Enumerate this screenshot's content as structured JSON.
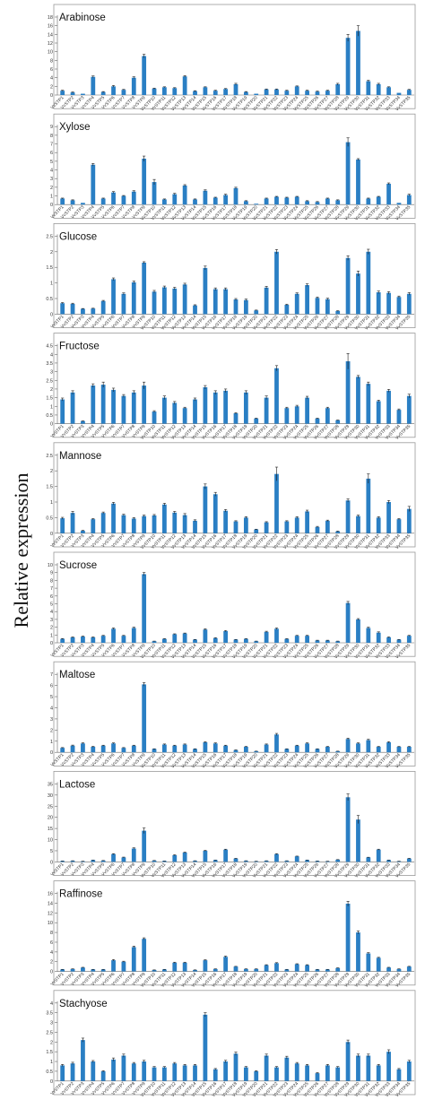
{
  "figure": {
    "ylabel": "Relative        expression"
  },
  "chart_data": [
    {
      "type": "bar",
      "title": "Arabinose",
      "ylim": [
        0,
        18
      ],
      "yticks": [
        0,
        2,
        4,
        6,
        8,
        10,
        12,
        14,
        16,
        18
      ],
      "categories": [
        "VvSTP1",
        "VvSTP2",
        "VvSTP3",
        "VvSTP4",
        "VvSTP5",
        "VvSTP6",
        "VvSTP7",
        "VvSTP8",
        "VvSTP9",
        "VvSTP10",
        "VvSTP11",
        "VvSTP12",
        "VvSTP13",
        "VvSTP14",
        "VvSTP15",
        "VvSTP16",
        "VvSTP17",
        "VvSTP18",
        "VvSTP19",
        "VvSTP20",
        "VvSTP21",
        "VvSTP22",
        "VvSTP23",
        "VvSTP24",
        "VvSTP25",
        "VvSTP26",
        "VvSTP27",
        "VvSTP28",
        "VvSTP29",
        "VvSTP30",
        "VvSTP31",
        "VvSTP32",
        "VvSTP33",
        "VvSTP34",
        "VvSTP35"
      ],
      "values": [
        1.0,
        0.6,
        0.3,
        4.2,
        0.7,
        2.0,
        1.2,
        4.0,
        9.0,
        1.5,
        1.8,
        1.6,
        4.3,
        0.9,
        1.8,
        1.0,
        1.4,
        2.5,
        0.7,
        0.3,
        1.3,
        1.3,
        1.0,
        2.0,
        1.0,
        0.8,
        1.0,
        2.5,
        13.2,
        14.8,
        3.2,
        2.5,
        1.8,
        0.5,
        1.2
      ],
      "errors": [
        0.1,
        0.1,
        0,
        0.2,
        0.1,
        0.2,
        0.1,
        0.2,
        0.4,
        0.1,
        0.1,
        0.1,
        0.2,
        0.1,
        0.1,
        0.1,
        0.1,
        0.2,
        0.1,
        0,
        0.1,
        0.1,
        0.1,
        0.1,
        0.1,
        0.1,
        0.1,
        0.2,
        0.8,
        1.2,
        0.2,
        0.2,
        0.1,
        0,
        0.1
      ]
    },
    {
      "type": "bar",
      "title": "Xylose",
      "ylim": [
        0,
        9
      ],
      "yticks": [
        0,
        1,
        2,
        3,
        4,
        5,
        6,
        7,
        8,
        9
      ],
      "categories": [
        "VvSTP1",
        "VvSTP2",
        "VvSTP3",
        "VvSTP4",
        "VvSTP5",
        "VvSTP6",
        "VvSTP7",
        "VvSTP8",
        "VvSTP9",
        "VvSTP10",
        "VvSTP11",
        "VvSTP12",
        "VvSTP13",
        "VvSTP14",
        "VvSTP15",
        "VvSTP16",
        "VvSTP17",
        "VvSTP18",
        "VvSTP19",
        "VvSTP20",
        "VvSTP21",
        "VvSTP22",
        "VvSTP23",
        "VvSTP24",
        "VvSTP25",
        "VvSTP26",
        "VvSTP27",
        "VvSTP28",
        "VvSTP29",
        "VvSTP30",
        "VvSTP31",
        "VvSTP32",
        "VvSTP33",
        "VvSTP34",
        "VvSTP35"
      ],
      "values": [
        0.7,
        0.5,
        0.2,
        4.6,
        0.7,
        1.4,
        1.0,
        1.5,
        5.3,
        2.6,
        0.6,
        1.2,
        2.2,
        0.6,
        1.6,
        0.8,
        1.1,
        1.9,
        0.4,
        0.1,
        0.7,
        0.9,
        0.8,
        0.9,
        0.4,
        0.3,
        0.7,
        0.5,
        7.2,
        5.2,
        0.7,
        0.9,
        2.4,
        0.2,
        1.1
      ],
      "errors": [
        0.05,
        0.05,
        0,
        0.15,
        0.05,
        0.1,
        0.05,
        0.1,
        0.3,
        0.3,
        0.05,
        0.1,
        0.1,
        0.05,
        0.1,
        0.05,
        0.1,
        0.1,
        0.05,
        0,
        0.05,
        0.05,
        0.05,
        0.05,
        0.05,
        0.05,
        0.05,
        0.05,
        0.5,
        0.1,
        0.05,
        0.05,
        0.1,
        0,
        0.1
      ]
    },
    {
      "type": "bar",
      "title": "Glucose",
      "ylim": [
        0,
        2.5
      ],
      "yticks": [
        0,
        0.5,
        1,
        1.5,
        2,
        2.5
      ],
      "categories": [
        "VvSTP1",
        "VvSTP2",
        "VvSTP3",
        "VvSTP4",
        "VvSTP5",
        "VvSTP6",
        "VvSTP7",
        "VvSTP8",
        "VvSTP9",
        "VvSTP10",
        "VvSTP11",
        "VvSTP12",
        "VvSTP13",
        "VvSTP14",
        "VvSTP15",
        "VvSTP16",
        "VvSTP17",
        "VvSTP18",
        "VvSTP19",
        "VvSTP20",
        "VvSTP21",
        "VvSTP22",
        "VvSTP23",
        "VvSTP24",
        "VvSTP25",
        "VvSTP26",
        "VvSTP27",
        "VvSTP28",
        "VvSTP29",
        "VvSTP30",
        "VvSTP31",
        "VvSTP32",
        "VvSTP33",
        "VvSTP34",
        "VvSTP35"
      ],
      "values": [
        0.35,
        0.33,
        0.17,
        0.18,
        0.42,
        1.12,
        0.65,
        1.02,
        1.65,
        0.72,
        0.86,
        0.82,
        0.95,
        0.28,
        1.48,
        0.8,
        0.8,
        0.47,
        0.45,
        0.12,
        0.85,
        2.0,
        0.3,
        0.65,
        0.93,
        0.52,
        0.48,
        0.1,
        1.8,
        1.3,
        2.0,
        0.7,
        0.68,
        0.55,
        0.65
      ],
      "errors": [
        0.02,
        0.02,
        0.01,
        0.01,
        0.02,
        0.04,
        0.03,
        0.04,
        0.03,
        0.04,
        0.04,
        0.04,
        0.04,
        0.02,
        0.06,
        0.04,
        0.04,
        0.03,
        0.03,
        0.01,
        0.04,
        0.07,
        0.02,
        0.03,
        0.04,
        0.03,
        0.03,
        0.01,
        0.07,
        0.08,
        0.08,
        0.04,
        0.04,
        0.03,
        0.04
      ]
    },
    {
      "type": "bar",
      "title": "Fructose",
      "ylim": [
        0,
        4.5
      ],
      "yticks": [
        0,
        0.5,
        1,
        1.5,
        2,
        2.5,
        3,
        3.5,
        4,
        4.5
      ],
      "categories": [
        "VvSTP1",
        "VvSTP2",
        "VvSTP3",
        "VvSTP4",
        "VvSTP5",
        "VvSTP6",
        "VvSTP7",
        "VvSTP8",
        "VvSTP9",
        "VvSTP10",
        "VvSTP11",
        "VvSTP12",
        "VvSTP13",
        "VvSTP14",
        "VvSTP15",
        "VvSTP16",
        "VvSTP17",
        "VvSTP18",
        "VvSTP19",
        "VvSTP20",
        "VvSTP21",
        "VvSTP22",
        "VvSTP23",
        "VvSTP24",
        "VvSTP25",
        "VvSTP26",
        "VvSTP27",
        "VvSTP28",
        "VvSTP29",
        "VvSTP30",
        "VvSTP31",
        "VvSTP32",
        "VvSTP33",
        "VvSTP34",
        "VvSTP35"
      ],
      "values": [
        1.4,
        1.8,
        0.15,
        2.2,
        2.25,
        1.95,
        1.6,
        1.8,
        2.2,
        0.7,
        1.5,
        1.2,
        0.9,
        1.4,
        2.1,
        1.8,
        1.9,
        0.6,
        1.8,
        0.3,
        1.5,
        3.2,
        0.9,
        1.0,
        1.5,
        0.3,
        0.9,
        0.2,
        3.6,
        2.7,
        2.3,
        1.3,
        1.9,
        0.8,
        1.6
      ],
      "errors": [
        0.08,
        0.1,
        0.01,
        0.1,
        0.15,
        0.1,
        0.08,
        0.1,
        0.2,
        0.05,
        0.1,
        0.08,
        0.05,
        0.08,
        0.1,
        0.1,
        0.1,
        0.04,
        0.1,
        0.02,
        0.1,
        0.15,
        0.05,
        0.06,
        0.08,
        0.02,
        0.05,
        0.01,
        0.45,
        0.08,
        0.1,
        0.06,
        0.08,
        0.05,
        0.1
      ]
    },
    {
      "type": "bar",
      "title": "Mannose",
      "ylim": [
        0,
        2.5
      ],
      "yticks": [
        0,
        0.5,
        1,
        1.5,
        2,
        2.5
      ],
      "categories": [
        "VvSTP1",
        "VvSTP2",
        "VvSTP3",
        "VvSTP4",
        "VvSTP5",
        "VvSTP6",
        "VvSTP7",
        "VvSTP8",
        "VvSTP9",
        "VvSTP10",
        "VvSTP11",
        "VvSTP12",
        "VvSTP13",
        "VvSTP14",
        "VvSTP15",
        "VvSTP16",
        "VvSTP17",
        "VvSTP18",
        "VvSTP19",
        "VvSTP20",
        "VvSTP21",
        "VvSTP22",
        "VvSTP23",
        "VvSTP24",
        "VvSTP25",
        "VvSTP26",
        "VvSTP27",
        "VvSTP28",
        "VvSTP29",
        "VvSTP30",
        "VvSTP31",
        "VvSTP32",
        "VvSTP33",
        "VvSTP34",
        "VvSTP35"
      ],
      "values": [
        0.48,
        0.65,
        0.08,
        0.45,
        0.65,
        0.95,
        0.58,
        0.47,
        0.55,
        0.57,
        0.92,
        0.66,
        0.58,
        0.4,
        1.5,
        1.25,
        0.72,
        0.38,
        0.5,
        0.12,
        0.35,
        1.9,
        0.38,
        0.5,
        0.7,
        0.2,
        0.4,
        0.06,
        1.05,
        0.55,
        1.75,
        0.5,
        1.0,
        0.45,
        0.78
      ],
      "errors": [
        0.03,
        0.05,
        0.01,
        0.02,
        0.03,
        0.04,
        0.03,
        0.03,
        0.03,
        0.03,
        0.04,
        0.04,
        0.05,
        0.03,
        0.08,
        0.06,
        0.04,
        0.02,
        0.03,
        0.01,
        0.02,
        0.22,
        0.02,
        0.03,
        0.04,
        0.02,
        0.02,
        0.01,
        0.05,
        0.03,
        0.15,
        0.03,
        0.05,
        0.02,
        0.08
      ]
    },
    {
      "type": "bar",
      "title": "Sucrose",
      "ylim": [
        0,
        10
      ],
      "yticks": [
        0,
        1,
        2,
        3,
        4,
        5,
        6,
        7,
        8,
        9,
        10
      ],
      "categories": [
        "VvSTP1",
        "VvSTP2",
        "VvSTP3",
        "VvSTP4",
        "VvSTP5",
        "VvSTP6",
        "VvSTP7",
        "VvSTP8",
        "VvSTP9",
        "VvSTP10",
        "VvSTP11",
        "VvSTP12",
        "VvSTP13",
        "VvSTP14",
        "VvSTP15",
        "VvSTP16",
        "VvSTP17",
        "VvSTP18",
        "VvSTP19",
        "VvSTP20",
        "VvSTP21",
        "VvSTP22",
        "VvSTP23",
        "VvSTP24",
        "VvSTP25",
        "VvSTP26",
        "VvSTP27",
        "VvSTP28",
        "VvSTP29",
        "VvSTP30",
        "VvSTP31",
        "VvSTP32",
        "VvSTP33",
        "VvSTP34",
        "VvSTP35"
      ],
      "values": [
        0.5,
        0.7,
        0.8,
        0.7,
        0.9,
        1.8,
        0.9,
        1.9,
        8.8,
        0.2,
        0.5,
        1.1,
        1.2,
        0.4,
        1.7,
        0.6,
        1.5,
        0.4,
        0.5,
        0.2,
        1.4,
        1.8,
        0.5,
        0.9,
        0.9,
        0.3,
        0.3,
        0.2,
        5.1,
        3.0,
        1.9,
        1.3,
        0.7,
        0.4,
        0.9
      ],
      "errors": [
        0.05,
        0.05,
        0.05,
        0.05,
        0.05,
        0.1,
        0.05,
        0.1,
        0.2,
        0.02,
        0.03,
        0.05,
        0.05,
        0.03,
        0.1,
        0.05,
        0.08,
        0.03,
        0.03,
        0.02,
        0.08,
        0.1,
        0.03,
        0.05,
        0.05,
        0.03,
        0.03,
        0.02,
        0.2,
        0.1,
        0.1,
        0.1,
        0.05,
        0.03,
        0.05
      ]
    },
    {
      "type": "bar",
      "title": "Maltose",
      "ylim": [
        0,
        7
      ],
      "yticks": [
        0,
        1,
        2,
        3,
        4,
        5,
        6,
        7
      ],
      "categories": [
        "VvSTP1",
        "VvSTP2",
        "VvSTP3",
        "VvSTP4",
        "VvSTP5",
        "VvSTP6",
        "VvSTP7",
        "VvSTP8",
        "VvSTP9",
        "VvSTP10",
        "VvSTP11",
        "VvSTP12",
        "VvSTP13",
        "VvSTP14",
        "VvSTP15",
        "VvSTP16",
        "VvSTP17",
        "VvSTP18",
        "VvSTP19",
        "VvSTP20",
        "VvSTP21",
        "VvSTP22",
        "VvSTP23",
        "VvSTP24",
        "VvSTP25",
        "VvSTP26",
        "VvSTP27",
        "VvSTP28",
        "VvSTP29",
        "VvSTP30",
        "VvSTP31",
        "VvSTP32",
        "VvSTP33",
        "VvSTP34",
        "VvSTP35"
      ],
      "values": [
        0.4,
        0.6,
        0.8,
        0.5,
        0.6,
        0.8,
        0.4,
        0.6,
        6.1,
        0.3,
        0.7,
        0.6,
        0.7,
        0.3,
        0.9,
        0.8,
        0.6,
        0.2,
        0.5,
        0.1,
        0.7,
        1.6,
        0.3,
        0.6,
        0.8,
        0.3,
        0.5,
        0.1,
        1.2,
        0.8,
        1.1,
        0.5,
        0.9,
        0.5,
        0.5
      ],
      "errors": [
        0.03,
        0.05,
        0.05,
        0.04,
        0.04,
        0.05,
        0.03,
        0.04,
        0.15,
        0.02,
        0.05,
        0.04,
        0.05,
        0.02,
        0.06,
        0.05,
        0.04,
        0.02,
        0.03,
        0.01,
        0.05,
        0.1,
        0.02,
        0.04,
        0.05,
        0.02,
        0.03,
        0.01,
        0.08,
        0.05,
        0.07,
        0.03,
        0.06,
        0.03,
        0.03
      ]
    },
    {
      "type": "bar",
      "title": "Lactose",
      "ylim": [
        0,
        35
      ],
      "yticks": [
        0,
        5,
        10,
        15,
        20,
        25,
        30,
        35
      ],
      "categories": [
        "VvSTP1",
        "VvSTP2",
        "VvSTP3",
        "VvSTP4",
        "VvSTP5",
        "VvSTP6",
        "VvSTP7",
        "VvSTP8",
        "VvSTP9",
        "VvSTP10",
        "VvSTP11",
        "VvSTP12",
        "VvSTP13",
        "VvSTP14",
        "VvSTP15",
        "VvSTP16",
        "VvSTP17",
        "VvSTP18",
        "VvSTP19",
        "VvSTP20",
        "VvSTP21",
        "VvSTP22",
        "VvSTP23",
        "VvSTP24",
        "VvSTP25",
        "VvSTP26",
        "VvSTP27",
        "VvSTP28",
        "VvSTP29",
        "VvSTP30",
        "VvSTP31",
        "VvSTP32",
        "VvSTP33",
        "VvSTP34",
        "VvSTP35"
      ],
      "values": [
        0.4,
        0.5,
        0.3,
        0.8,
        0.6,
        3.5,
        2.0,
        6.0,
        14.0,
        0.6,
        0.4,
        3.0,
        4.2,
        0.5,
        5.0,
        0.8,
        5.5,
        1.5,
        0.5,
        0.3,
        0.5,
        3.5,
        0.5,
        2.5,
        0.8,
        0.4,
        0.3,
        1.0,
        29.0,
        19.0,
        2.0,
        5.5,
        0.8,
        0.3,
        1.5
      ],
      "errors": [
        0.03,
        0.03,
        0.02,
        0.05,
        0.04,
        0.2,
        0.15,
        0.3,
        1.2,
        0.04,
        0.03,
        0.2,
        0.2,
        0.03,
        0.2,
        0.05,
        0.2,
        0.1,
        0.03,
        0.02,
        0.03,
        0.2,
        0.03,
        0.1,
        0.05,
        0.03,
        0.02,
        0.05,
        1.5,
        1.8,
        0.1,
        0.2,
        0.05,
        0.02,
        0.1
      ]
    },
    {
      "type": "bar",
      "title": "Raffinose",
      "ylim": [
        0,
        16
      ],
      "yticks": [
        0,
        2,
        4,
        6,
        8,
        10,
        12,
        14,
        16
      ],
      "categories": [
        "VvSTP1",
        "VvSTP2",
        "VvSTP3",
        "VvSTP4",
        "VvSTP5",
        "VvSTP6",
        "VvSTP7",
        "VvSTP8",
        "VvSTP9",
        "VvSTP10",
        "VvSTP11",
        "VvSTP12",
        "VvSTP13",
        "VvSTP14",
        "VvSTP15",
        "VvSTP16",
        "VvSTP17",
        "VvSTP18",
        "VvSTP19",
        "VvSTP20",
        "VvSTP21",
        "VvSTP22",
        "VvSTP23",
        "VvSTP24",
        "VvSTP25",
        "VvSTP26",
        "VvSTP27",
        "VvSTP28",
        "VvSTP29",
        "VvSTP30",
        "VvSTP31",
        "VvSTP32",
        "VvSTP33",
        "VvSTP34",
        "VvSTP35"
      ],
      "values": [
        0.4,
        0.5,
        0.8,
        0.4,
        0.4,
        2.3,
        2.0,
        5.0,
        6.7,
        0.3,
        0.4,
        1.8,
        1.8,
        0.3,
        2.3,
        0.5,
        3.0,
        1.0,
        0.5,
        0.5,
        1.3,
        1.7,
        0.4,
        1.5,
        1.3,
        0.4,
        0.4,
        0.7,
        13.9,
        8.0,
        3.7,
        2.8,
        0.8,
        0.5,
        1.0
      ],
      "errors": [
        0.03,
        0.03,
        0.05,
        0.03,
        0.03,
        0.15,
        0.1,
        0.2,
        0.2,
        0.02,
        0.03,
        0.1,
        0.1,
        0.02,
        0.1,
        0.03,
        0.15,
        0.05,
        0.03,
        0.03,
        0.08,
        0.1,
        0.03,
        0.08,
        0.08,
        0.03,
        0.03,
        0.04,
        0.5,
        0.3,
        0.15,
        0.1,
        0.05,
        0.03,
        0.05
      ]
    },
    {
      "type": "bar",
      "title": "Stachyose",
      "ylim": [
        0,
        4
      ],
      "yticks": [
        0,
        0.5,
        1,
        1.5,
        2,
        2.5,
        3,
        3.5,
        4
      ],
      "categories": [
        "VvSTP1",
        "VvSTP2",
        "VvSTP3",
        "VvSTP4",
        "VvSTP5",
        "VvSTP6",
        "VvSTP7",
        "VvSTP8",
        "VvSTP9",
        "VvSTP10",
        "VvSTP11",
        "VvSTP12",
        "VvSTP13",
        "VvSTP14",
        "VvSTP15",
        "VvSTP16",
        "VvSTP17",
        "VvSTP18",
        "VvSTP19",
        "VvSTP20",
        "VvSTP21",
        "VvSTP22",
        "VvSTP23",
        "VvSTP24",
        "VvSTP25",
        "VvSTP26",
        "VvSTP27",
        "VvSTP28",
        "VvSTP29",
        "VvSTP30",
        "VvSTP31",
        "VvSTP32",
        "VvSTP33",
        "VvSTP34",
        "VvSTP35"
      ],
      "values": [
        0.8,
        0.9,
        2.1,
        1.0,
        0.5,
        1.1,
        1.3,
        0.9,
        1.0,
        0.7,
        0.7,
        0.9,
        0.8,
        0.8,
        3.4,
        0.6,
        1.0,
        1.4,
        0.7,
        0.5,
        1.3,
        0.7,
        1.2,
        0.9,
        0.8,
        0.4,
        0.8,
        0.7,
        2.0,
        1.3,
        1.3,
        0.8,
        1.5,
        0.6,
        1.0
      ],
      "errors": [
        0.05,
        0.06,
        0.1,
        0.05,
        0.03,
        0.08,
        0.08,
        0.05,
        0.06,
        0.04,
        0.04,
        0.05,
        0.05,
        0.05,
        0.1,
        0.04,
        0.06,
        0.08,
        0.04,
        0.03,
        0.08,
        0.04,
        0.07,
        0.05,
        0.05,
        0.03,
        0.05,
        0.04,
        0.1,
        0.08,
        0.08,
        0.05,
        0.1,
        0.04,
        0.06
      ]
    }
  ]
}
